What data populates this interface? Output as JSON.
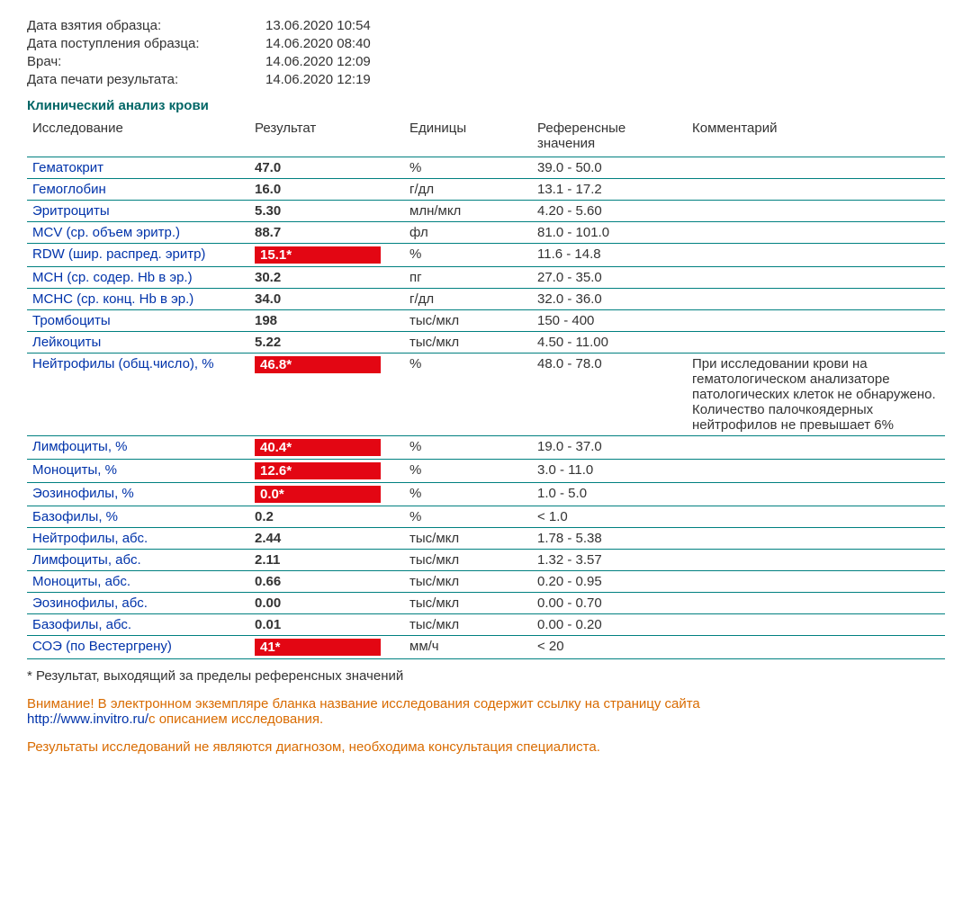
{
  "meta": [
    {
      "label": "Дата взятия образца:",
      "value": "13.06.2020 10:54"
    },
    {
      "label": "Дата поступления образца:",
      "value": "14.06.2020 08:40"
    },
    {
      "label": "Врач:",
      "value": "14.06.2020 12:09"
    },
    {
      "label": "Дата печати результата:",
      "value": "14.06.2020 12:19"
    }
  ],
  "section_title": "Клинический анализ крови",
  "headers": {
    "test": "Исследование",
    "result": "Результат",
    "units": "Единицы",
    "ref": "Референсные значения",
    "comment": "Комментарий"
  },
  "rows": [
    {
      "test": "Гематокрит",
      "result": "47.0",
      "flag": false,
      "units": "%",
      "ref": "39.0 - 50.0",
      "comment": ""
    },
    {
      "test": "Гемоглобин",
      "result": "16.0",
      "flag": false,
      "units": "г/дл",
      "ref": "13.1 - 17.2",
      "comment": ""
    },
    {
      "test": "Эритроциты",
      "result": "5.30",
      "flag": false,
      "units": "млн/мкл",
      "ref": "4.20 - 5.60",
      "comment": ""
    },
    {
      "test": "MCV (ср. объем эритр.)",
      "result": "88.7",
      "flag": false,
      "units": "фл",
      "ref": "81.0 - 101.0",
      "comment": ""
    },
    {
      "test": "RDW (шир. распред. эритр)",
      "result": "15.1*",
      "flag": true,
      "units": "%",
      "ref": "11.6 - 14.8",
      "comment": ""
    },
    {
      "test": "MCH (ср. содер. Hb в эр.)",
      "result": "30.2",
      "flag": false,
      "units": "пг",
      "ref": "27.0 - 35.0",
      "comment": ""
    },
    {
      "test": "MCHC (ср. конц. Hb в эр.)",
      "result": "34.0",
      "flag": false,
      "units": "г/дл",
      "ref": "32.0 - 36.0",
      "comment": ""
    },
    {
      "test": "Тромбоциты",
      "result": "198",
      "flag": false,
      "units": "тыс/мкл",
      "ref": "150 - 400",
      "comment": ""
    },
    {
      "test": "Лейкоциты",
      "result": "5.22",
      "flag": false,
      "units": "тыс/мкл",
      "ref": "4.50 - 11.00",
      "comment": ""
    },
    {
      "test": "Нейтрофилы (общ.число), %",
      "result": "46.8*",
      "flag": true,
      "units": "%",
      "ref": "48.0 - 78.0",
      "comment": "При исследовании крови на гематологическом анализаторе патологических клеток не обнаружено. Количество палочкоядерных нейтрофилов не превышает 6%"
    },
    {
      "test": "Лимфоциты, %",
      "result": "40.4*",
      "flag": true,
      "units": "%",
      "ref": "19.0 - 37.0",
      "comment": ""
    },
    {
      "test": "Моноциты, %",
      "result": "12.6*",
      "flag": true,
      "units": "%",
      "ref": "3.0 - 11.0",
      "comment": ""
    },
    {
      "test": "Эозинофилы, %",
      "result": "0.0*",
      "flag": true,
      "units": "%",
      "ref": "1.0 - 5.0",
      "comment": ""
    },
    {
      "test": "Базофилы, %",
      "result": "0.2",
      "flag": false,
      "units": "%",
      "ref": "< 1.0",
      "comment": ""
    },
    {
      "test": "Нейтрофилы, абс.",
      "result": "2.44",
      "flag": false,
      "units": "тыс/мкл",
      "ref": "1.78 - 5.38",
      "comment": ""
    },
    {
      "test": "Лимфоциты, абс.",
      "result": "2.11",
      "flag": false,
      "units": "тыс/мкл",
      "ref": "1.32 - 3.57",
      "comment": ""
    },
    {
      "test": "Моноциты, абс.",
      "result": "0.66",
      "flag": false,
      "units": "тыс/мкл",
      "ref": "0.20 - 0.95",
      "comment": ""
    },
    {
      "test": "Эозинофилы, абс.",
      "result": "0.00",
      "flag": false,
      "units": "тыс/мкл",
      "ref": "0.00 - 0.70",
      "comment": ""
    },
    {
      "test": "Базофилы, абс.",
      "result": "0.01",
      "flag": false,
      "units": "тыс/мкл",
      "ref": "0.00 - 0.20",
      "comment": ""
    },
    {
      "test": "СОЭ (по Вестергрену)",
      "result": "41*",
      "flag": true,
      "units": "мм/ч",
      "ref": "< 20",
      "comment": ""
    }
  ],
  "footnote": "* Результат, выходящий за пределы референсных значений",
  "warning_strong": "Внимание!",
  "warning_text_1": " В электронном экземпляре бланка название исследования содержит ссылку на страницу сайта ",
  "warning_link": "http://www.invitro.ru/",
  "warning_text_2": "с описанием исследования.",
  "disclaimer": "Результаты исследований не являются диагнозом, необходима консультация специалиста.",
  "colors": {
    "teal": "#008080",
    "section_title": "#006666",
    "test_link": "#0033aa",
    "flag_bg": "#e30613",
    "flag_fg": "#ffffff",
    "warning": "#d96b00"
  }
}
